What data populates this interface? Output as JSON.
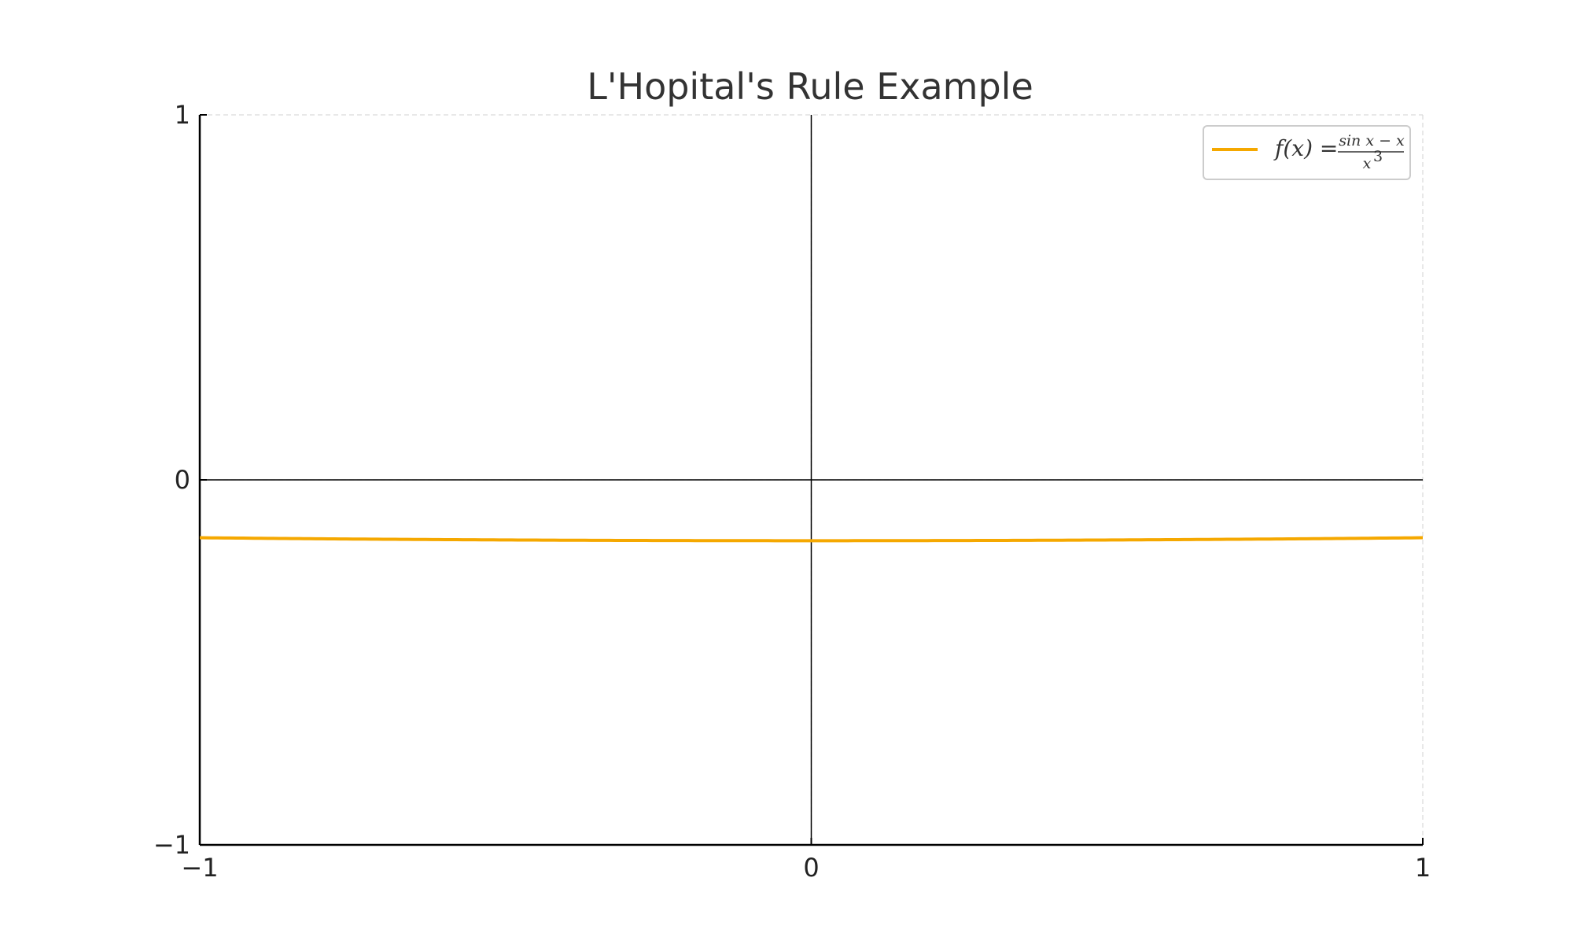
{
  "chart_data": {
    "type": "line",
    "title": "L'Hopital's Rule Example",
    "xlabel": "",
    "ylabel": "",
    "xlim": [
      -1,
      1
    ],
    "ylim": [
      -1,
      1
    ],
    "x_ticks": [
      -1,
      0,
      1
    ],
    "y_ticks": [
      -1,
      0,
      1
    ],
    "x_tick_labels": [
      "−1",
      "0",
      "1"
    ],
    "y_tick_labels": [
      "−1",
      "0",
      "1"
    ],
    "grid": true,
    "legend_position": "top-right",
    "series": [
      {
        "name": "f(x) = (sin x − x) / x³",
        "color": "#f5a800",
        "function": "(sin(x) - x) / x^3",
        "x": [
          -1.0,
          -0.75,
          -0.5,
          -0.25,
          0.0,
          0.25,
          0.5,
          0.75,
          1.0
        ],
        "y": [
          -0.1585,
          -0.1619,
          -0.1646,
          -0.1662,
          -0.1667,
          -0.1662,
          -0.1646,
          -0.1619,
          -0.1585
        ]
      }
    ],
    "legend": {
      "label_lhs": "f(x) =",
      "numerator": "sin x − x",
      "denominator": "x",
      "exponent": "3"
    }
  },
  "colors": {
    "line": "#f5a800",
    "axis": "#000000",
    "grid": "#d9d9d9",
    "legend_border": "#cccccc"
  }
}
